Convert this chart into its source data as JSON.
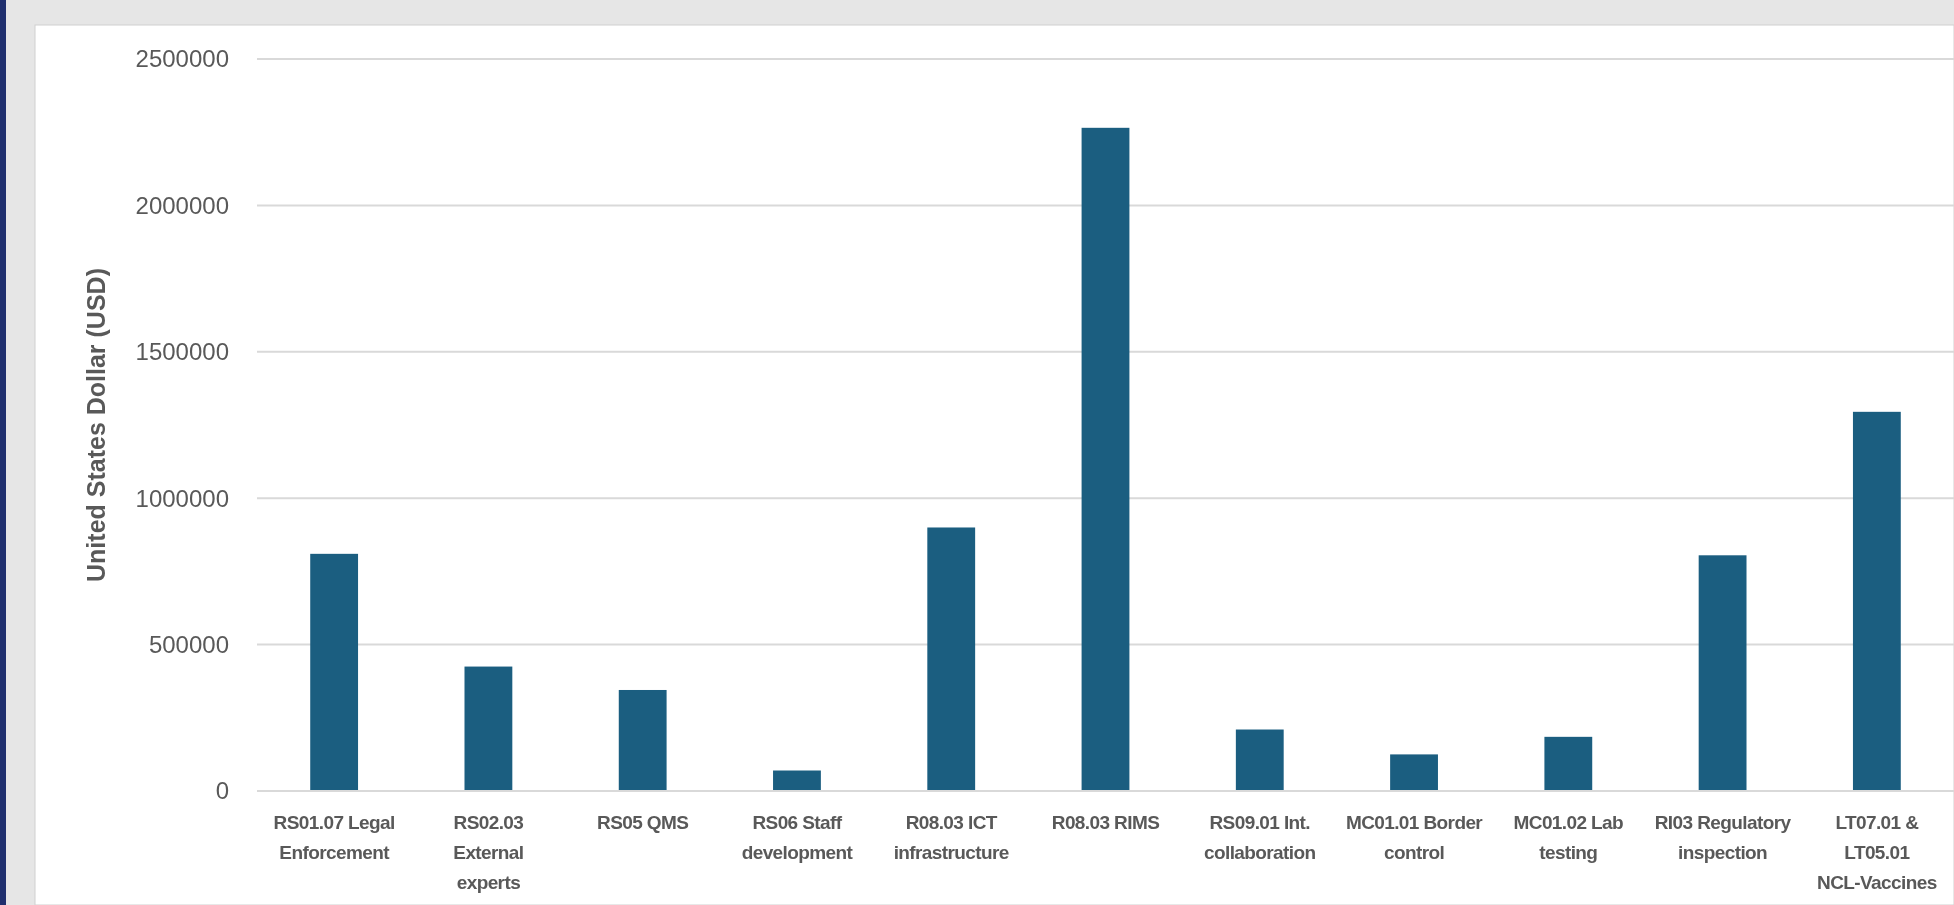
{
  "chart_data": {
    "type": "bar",
    "ylabel": "United States Dollar (USD)",
    "categories": [
      "RS01.07 Legal Enforcement",
      "RS02.03 External experts",
      "RS05 QMS",
      "RS06 Staff development",
      "R08.03 ICT infrastructure",
      "R08.03 RIMS",
      "RS09.01 Int. collaboration",
      "MC01.01 Border control",
      "MC01.02 Lab testing",
      "RI03 Regulatory inspection",
      "LT07.01 & LT05.01 NCL-Vaccines"
    ],
    "values": [
      810000,
      425000,
      345000,
      70000,
      900000,
      2265000,
      210000,
      125000,
      185000,
      805000,
      1295000
    ],
    "color": "#1b5e80",
    "ylim": [
      0,
      2500000
    ],
    "yticks": [
      0,
      500000,
      1000000,
      1500000,
      2000000,
      2500000
    ],
    "grid": "y"
  }
}
